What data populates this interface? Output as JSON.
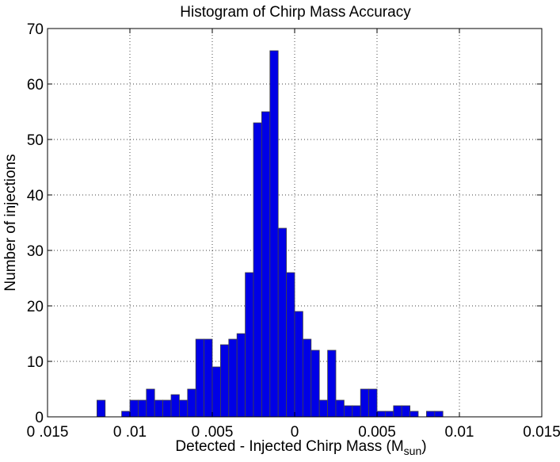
{
  "chart_data": {
    "type": "bar",
    "title": "Histogram of Chirp Mass Accuracy",
    "xlabel": "Detected -  Injected Chirp Mass (M",
    "xlabel_sub": "sun",
    "xlabel_close": ")",
    "ylabel": "Number of injections",
    "xlim": [
      -0.015,
      0.015
    ],
    "ylim": [
      0,
      70
    ],
    "grid": true,
    "bin_width": 0.0005,
    "x_tick_values": [
      -0.015,
      -0.01,
      -0.005,
      0,
      0.005,
      0.01,
      0.015
    ],
    "x_tick_labels": [
      "0 .015",
      "0 .01",
      "0 .005",
      "0",
      "0.005",
      "0.01",
      "0.015"
    ],
    "y_tick_values": [
      0,
      10,
      20,
      30,
      40,
      50,
      60,
      70
    ],
    "y_tick_labels": [
      "0",
      "10",
      "20",
      "30",
      "40",
      "50",
      "60",
      "70"
    ],
    "bin_centers": [
      -0.01175,
      -0.01075,
      -0.01025,
      -0.00975,
      -0.00925,
      -0.00875,
      -0.00825,
      -0.00775,
      -0.00725,
      -0.00675,
      -0.00625,
      -0.00575,
      -0.00525,
      -0.00475,
      -0.00425,
      -0.00375,
      -0.00325,
      -0.00275,
      -0.00225,
      -0.00175,
      -0.00125,
      -0.00075,
      -0.00025,
      0.00025,
      0.00075,
      0.00125,
      0.00175,
      0.00225,
      0.00275,
      0.00325,
      0.00375,
      0.00425,
      0.00475,
      0.00525,
      0.00575,
      0.00625,
      0.00675,
      0.00725,
      0.00775,
      0.00825,
      0.00875,
      0.00925,
      0.00975,
      0.01025,
      0.01075,
      0.01125,
      0.01175,
      0.01225,
      0.01275
    ],
    "values": [
      3,
      0,
      1,
      3,
      3,
      5,
      3,
      3,
      4,
      3,
      5,
      14,
      14,
      9,
      13,
      14,
      15,
      26,
      53,
      55,
      66,
      34,
      26,
      19,
      14,
      12,
      3,
      12,
      3,
      2,
      2,
      5,
      5,
      1,
      1,
      2,
      2,
      1,
      0,
      1,
      1,
      0,
      0,
      0,
      0,
      0,
      0,
      0,
      0
    ],
    "bar_color": "#0000e6",
    "bar_edge_color": "#444444"
  }
}
